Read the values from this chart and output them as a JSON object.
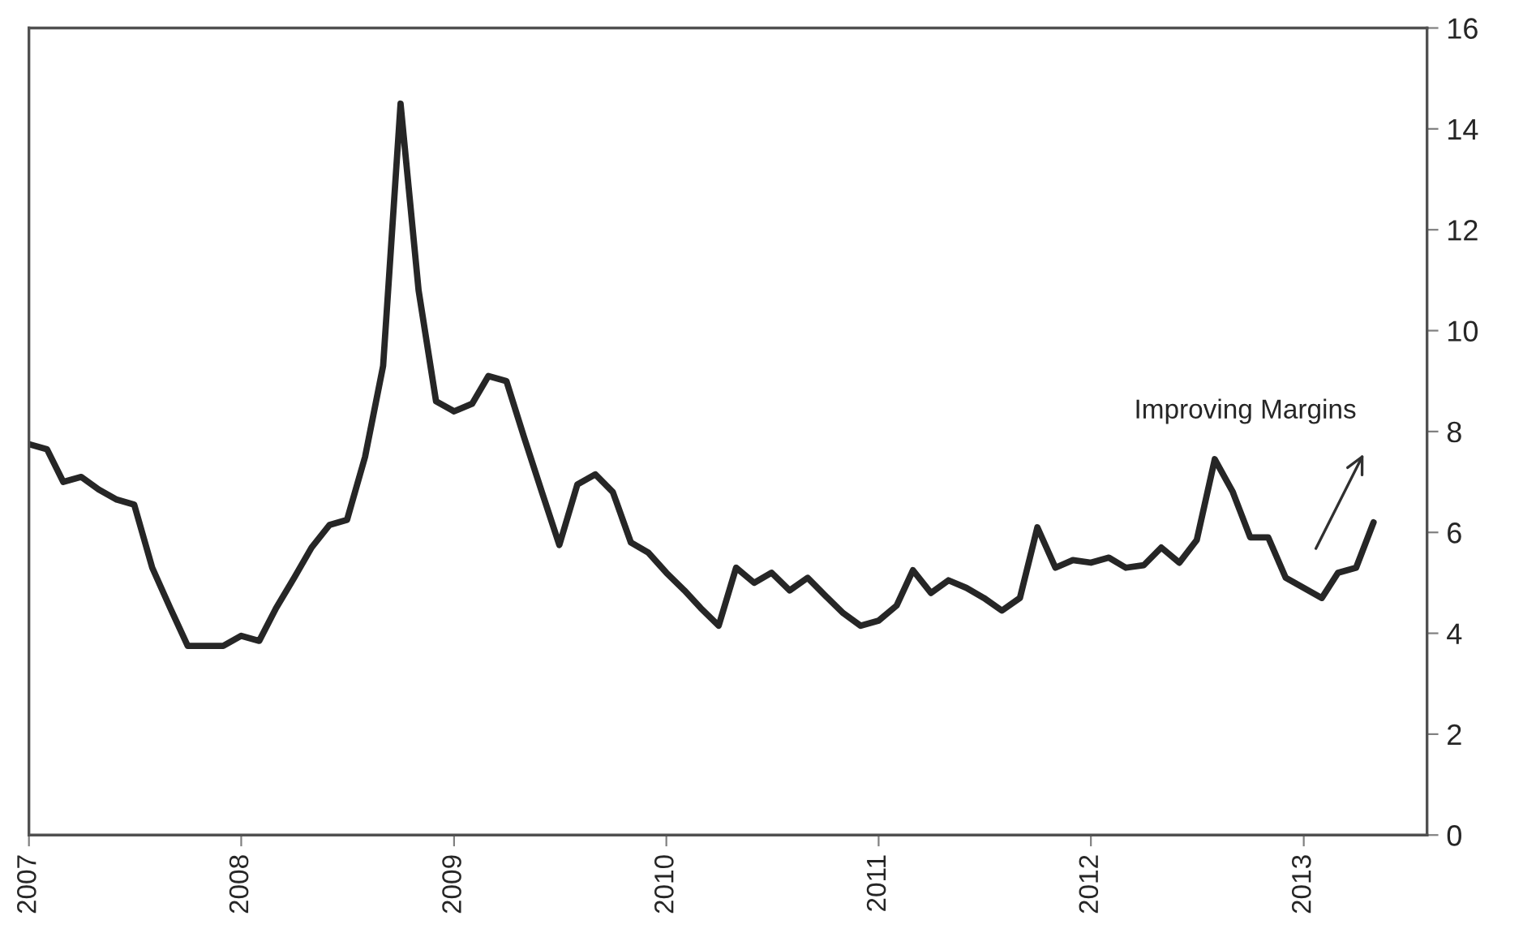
{
  "chart_data": {
    "type": "line",
    "x": [
      "2007-01",
      "2007-02",
      "2007-03",
      "2007-04",
      "2007-05",
      "2007-06",
      "2007-07",
      "2007-08",
      "2007-09",
      "2007-10",
      "2007-11",
      "2007-12",
      "2008-01",
      "2008-02",
      "2008-03",
      "2008-04",
      "2008-05",
      "2008-06",
      "2008-07",
      "2008-08",
      "2008-09",
      "2008-10",
      "2008-11",
      "2008-12",
      "2009-01",
      "2009-02",
      "2009-03",
      "2009-04",
      "2009-05",
      "2009-06",
      "2009-07",
      "2009-08",
      "2009-09",
      "2009-10",
      "2009-11",
      "2009-12",
      "2010-01",
      "2010-02",
      "2010-03",
      "2010-04",
      "2010-05",
      "2010-06",
      "2010-07",
      "2010-08",
      "2010-09",
      "2010-10",
      "2010-11",
      "2010-12",
      "2011-01",
      "2011-02",
      "2011-03",
      "2011-04",
      "2011-05",
      "2011-06",
      "2011-07",
      "2011-08",
      "2011-09",
      "2011-10",
      "2011-11",
      "2011-12",
      "2012-01",
      "2012-02",
      "2012-03",
      "2012-04",
      "2012-05",
      "2012-06",
      "2012-07",
      "2012-08",
      "2012-09",
      "2012-10",
      "2012-11",
      "2012-12",
      "2013-01",
      "2013-02",
      "2013-03",
      "2013-04",
      "2013-05"
    ],
    "series": [
      {
        "color": "#262626",
        "values": [
          7.75,
          7.65,
          7.0,
          7.1,
          6.85,
          6.65,
          6.55,
          5.3,
          4.5,
          3.75,
          3.75,
          3.75,
          3.95,
          3.85,
          4.5,
          5.1,
          5.7,
          6.15,
          6.25,
          7.5,
          9.3,
          14.5,
          10.8,
          8.6,
          8.4,
          8.55,
          9.1,
          9.0,
          7.9,
          6.8,
          5.75,
          6.95,
          7.15,
          6.8,
          5.8,
          5.6,
          5.2,
          4.85,
          4.5,
          4.15,
          5.3,
          5.0,
          5.2,
          4.85,
          5.1,
          4.75,
          4.4,
          4.15,
          4.25,
          4.55,
          5.25,
          4.8,
          5.05,
          4.9,
          4.7,
          4.45,
          4.7,
          6.1,
          5.3,
          5.45,
          5.4,
          5.5,
          5.3,
          5.35,
          5.7,
          5.4,
          5.85,
          7.45,
          6.8,
          5.9,
          5.9,
          5.1,
          4.9,
          4.7,
          5.2,
          5.3,
          6.2
        ]
      }
    ],
    "xlim": [
      "2007-01",
      "2013-08"
    ],
    "xticks": [
      "2007",
      "2008",
      "2009",
      "2010",
      "2011",
      "2012",
      "2013"
    ],
    "ylim": [
      0,
      16
    ],
    "yticks": [
      0,
      2,
      4,
      6,
      8,
      10,
      12,
      14,
      16
    ],
    "grid": false,
    "legend": false,
    "marker": "none",
    "line_style": "solid",
    "annotations": [
      "Improving Margins"
    ]
  }
}
